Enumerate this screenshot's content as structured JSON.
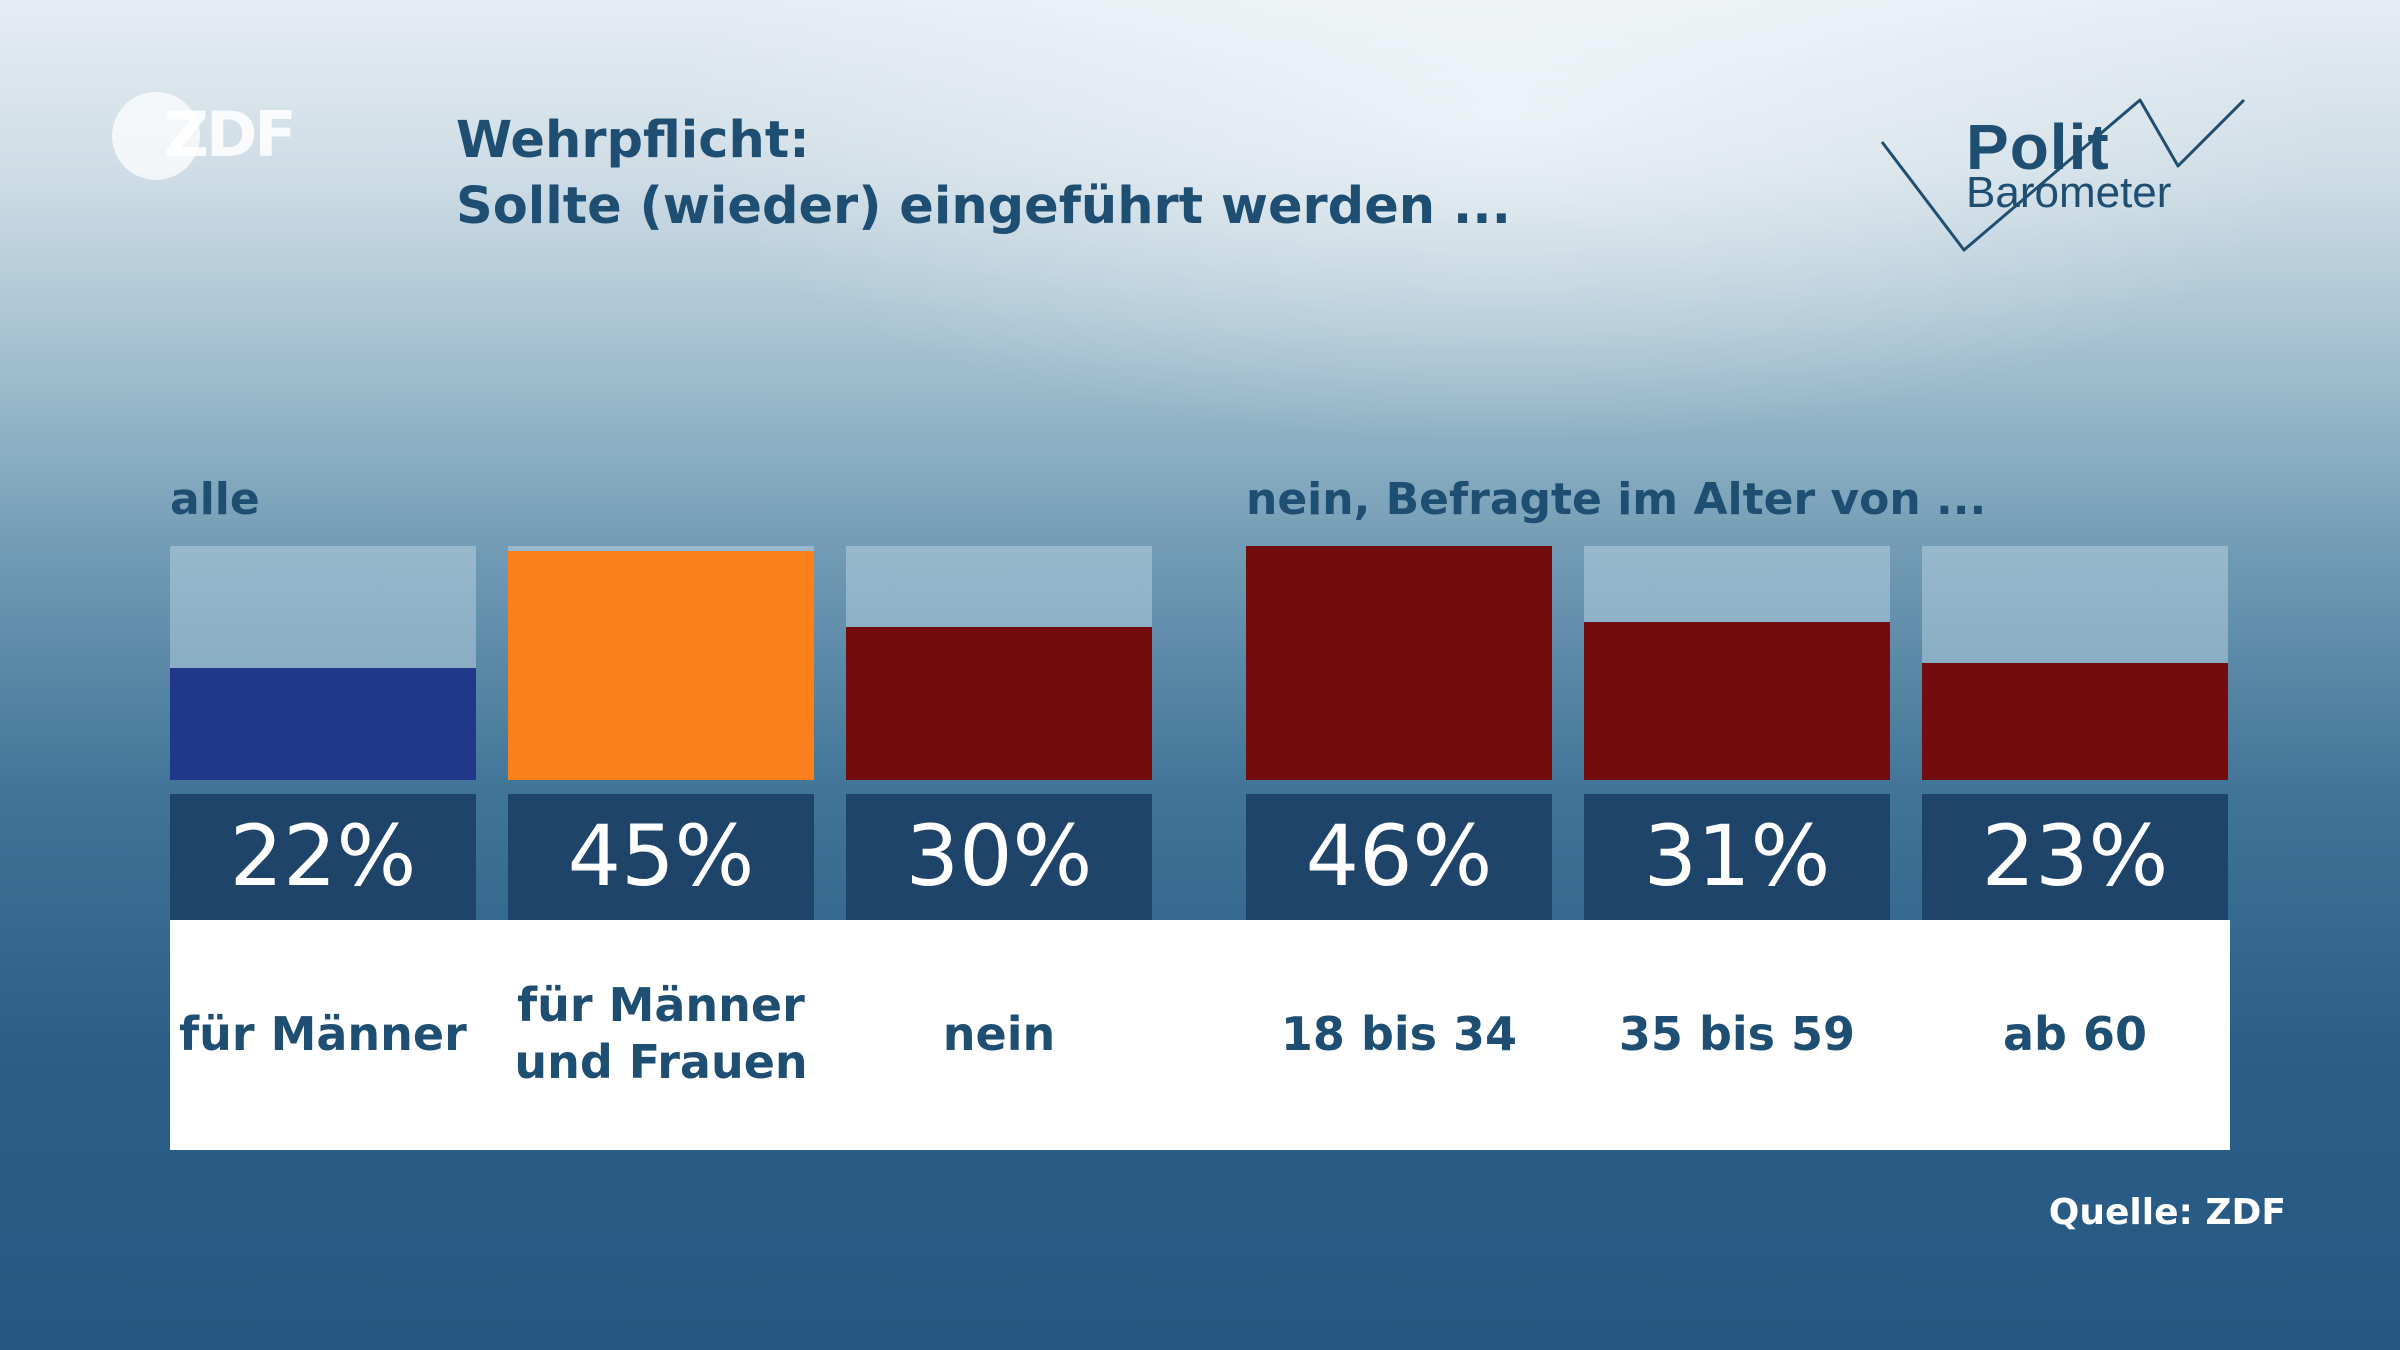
{
  "header": {
    "brand": "ZDF",
    "title_line1": "Wehrpflicht:",
    "title_line2": "Sollte (wieder) eingeführt werden ...",
    "logo_word1": "Polit",
    "logo_word2": "Barometer"
  },
  "groups": {
    "left_label": "alle",
    "right_label": "nein, Befragte im Alter von ..."
  },
  "source": "Quelle: ZDF",
  "colors": {
    "men": "#21378a",
    "men_and_women": "#fb7f1a",
    "no": "#720c0f",
    "value_box": "#1e446a",
    "panel": "#ffffff",
    "text": "#1e4e72"
  },
  "chart_data": {
    "type": "bar",
    "scale_max": 46,
    "categories": [
      "für Männer",
      "für Männer und Frauen",
      "nein",
      "18 bis 34",
      "35 bis 59",
      "ab 60"
    ],
    "category_lines": [
      [
        "für Männer"
      ],
      [
        "für Männer",
        "und Frauen"
      ],
      [
        "nein"
      ],
      [
        "18 bis 34"
      ],
      [
        "35 bis 59"
      ],
      [
        "ab 60"
      ]
    ],
    "values": [
      22,
      45,
      30,
      46,
      31,
      23
    ],
    "value_labels": [
      "22%",
      "45%",
      "30%",
      "46%",
      "31%",
      "23%"
    ],
    "groups": [
      {
        "name": "alle",
        "categories": [
          "für Männer",
          "für Männer und Frauen",
          "nein"
        ]
      },
      {
        "name": "nein, Befragte im Alter von ...",
        "categories": [
          "18 bis 34",
          "35 bis 59",
          "ab 60"
        ]
      }
    ],
    "bar_colors": [
      "#21378a",
      "#fb7f1a",
      "#720c0f",
      "#720c0f",
      "#720c0f",
      "#720c0f"
    ]
  }
}
